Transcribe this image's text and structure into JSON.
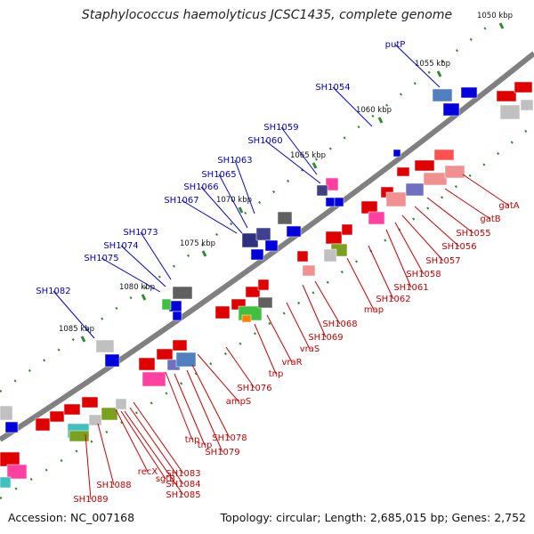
{
  "title": "Staphylococcus haemolyticus JCSC1435, complete genome",
  "footer": {
    "accession": "Accession: NC_007168",
    "summary": "Topology: circular; Length: 2,685,015 bp; Genes: 2,752"
  },
  "colors": {
    "backbone": "#808080",
    "label_blue": "#0000cc",
    "label_red": "#cc0000",
    "tick": "#2e8b2e"
  },
  "kbp_labels": [
    "1050 kbp",
    "1055 kbp",
    "1060 kbp",
    "1065 kbp",
    "1070 kbp",
    "1075 kbp",
    "1080 kbp",
    "1085 kbp"
  ],
  "outer_labels": [
    "putP",
    "SH1054",
    "SH1059",
    "SH1060",
    "SH1063",
    "SH1065",
    "SH1066",
    "SH1067",
    "SH1073",
    "SH1074",
    "SH1075",
    "SH1082"
  ],
  "inner_labels": [
    "gatA",
    "gatB",
    "SH1055",
    "SH1056",
    "SH1057",
    "SH1058",
    "SH1061",
    "SH1062",
    "map",
    "SH1068",
    "SH1069",
    "vraS",
    "vraR",
    "tnp",
    "SH1076",
    "ampS",
    "SH1078",
    "SH1079",
    "tnp",
    "tnp",
    "SH1083",
    "SH1084",
    "SH1085",
    "sgtB",
    "recX",
    "SH1088",
    "SH1089"
  ]
}
